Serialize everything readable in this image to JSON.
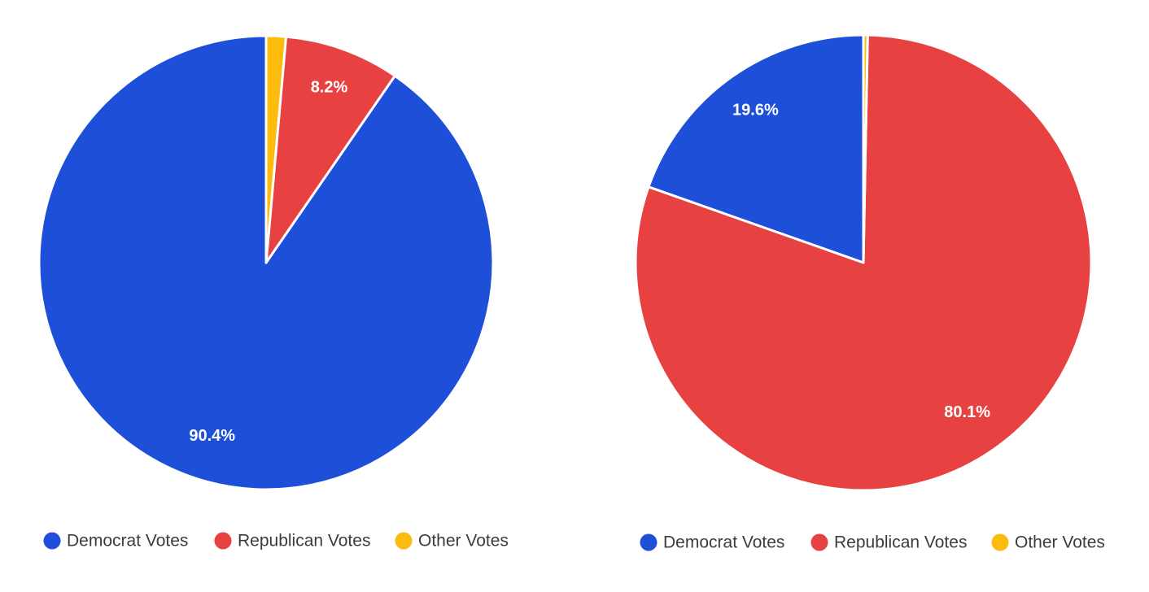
{
  "chart_data": [
    {
      "type": "pie",
      "categories": [
        "Democrat Votes",
        "Republican Votes",
        "Other Votes"
      ],
      "values": [
        90.4,
        8.2,
        1.4
      ],
      "data_labels": [
        "90.4%",
        "8.2%",
        ""
      ],
      "colors": [
        "#1d4fd8",
        "#e84141",
        "#fbbc0d"
      ],
      "legend": "bottom"
    },
    {
      "type": "pie",
      "categories": [
        "Democrat Votes",
        "Republican Votes",
        "Other Votes"
      ],
      "values": [
        19.6,
        80.1,
        0.3
      ],
      "data_labels": [
        "19.6%",
        "80.1%",
        ""
      ],
      "colors": [
        "#1d4fd8",
        "#e84141",
        "#fbbc0d"
      ],
      "legend": "bottom"
    }
  ]
}
